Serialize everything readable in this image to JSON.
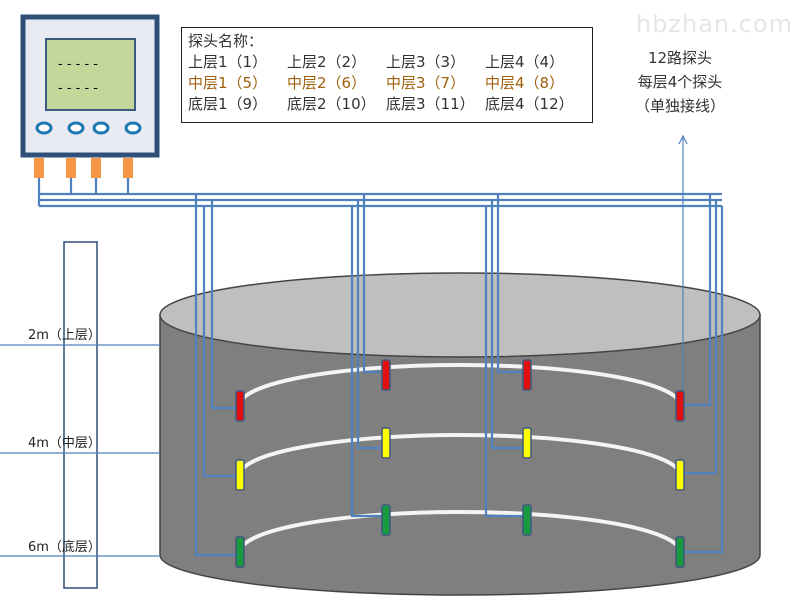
{
  "watermark": "hbzhan.com",
  "legend": {
    "title": "探头名称：",
    "rows": [
      [
        "上层1（1）",
        "上层2（2）",
        "上层3（3）",
        "上层4（4）"
      ],
      [
        "中层1（5）",
        "中层2（6）",
        "中层3（7）",
        "中层4（8）"
      ],
      [
        "底层1（9）",
        "底层2（10）",
        "底层3（11）",
        "底层4（12）"
      ]
    ]
  },
  "note": [
    "12路探头",
    "每层4个探头",
    "（单独接线）"
  ],
  "levels": [
    "2m（上层）",
    "4m（中层）",
    "6m（底层）"
  ],
  "display": {
    "line1": "- - - - -",
    "line2": "- - - - -"
  },
  "colors": {
    "wire": "#4f81bd",
    "upper": "#e01010",
    "middle": "#ffff00",
    "bottom": "#1a9a40",
    "tank": "#7f7f7f",
    "tank_top": "#bfbfbf"
  }
}
